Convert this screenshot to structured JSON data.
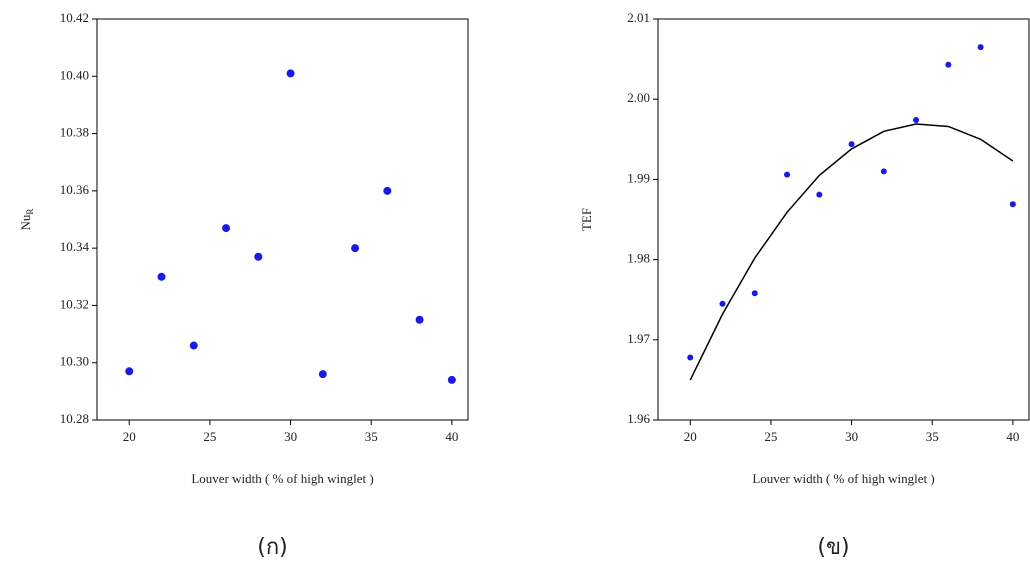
{
  "chart_data": [
    {
      "type": "scatter",
      "caption": "(ก)",
      "xlabel": "Louver width ( % of high winglet )",
      "ylabel": "Nu",
      "ylabel_subscript": "R",
      "x": [
        20,
        22,
        24,
        26,
        28,
        30,
        32,
        34,
        36,
        38,
        40
      ],
      "series": [
        {
          "color": "#1a1ae6",
          "marker": "circle",
          "values": [
            10.297,
            10.33,
            10.306,
            10.347,
            10.337,
            10.401,
            10.296,
            10.34,
            10.36,
            10.315,
            10.294
          ]
        }
      ],
      "xlim": [
        18,
        41
      ],
      "xticks": [
        20,
        25,
        30,
        35,
        40
      ],
      "ylim": [
        10.28,
        10.42
      ],
      "yticks": [
        10.28,
        {
          "value": 10.3,
          "label": "10.30"
        },
        10.32,
        10.34,
        10.36,
        10.38,
        {
          "value": 10.4,
          "label": "10.40"
        },
        10.42
      ],
      "grid": false
    },
    {
      "type": "scatter",
      "caption": "(ข)",
      "xlabel": "Louver width ( % of high winglet )",
      "ylabel": "TEF",
      "x": [
        20,
        22,
        24,
        26,
        28,
        30,
        32,
        34,
        36,
        38,
        40
      ],
      "series": [
        {
          "color": "#1a1ae6",
          "marker": "circle",
          "values": [
            1.9678,
            1.9745,
            1.9758,
            1.9906,
            1.9881,
            1.9944,
            1.991,
            1.9974,
            2.0043,
            2.0065,
            1.9869
          ]
        },
        {
          "color": "#000000",
          "marker": "line",
          "values": [
            1.965,
            1.9732,
            1.9802,
            1.9859,
            1.9905,
            1.9938,
            1.996,
            1.9969,
            1.9966,
            1.995,
            1.9923
          ]
        }
      ],
      "xlim": [
        18,
        41
      ],
      "xticks": [
        20,
        25,
        30,
        35,
        40
      ],
      "ylim": [
        1.96,
        2.01
      ],
      "yticks": [
        1.96,
        1.97,
        1.98,
        1.99,
        {
          "value": 2,
          "label": "2.00"
        },
        2.01
      ],
      "grid": false
    }
  ]
}
